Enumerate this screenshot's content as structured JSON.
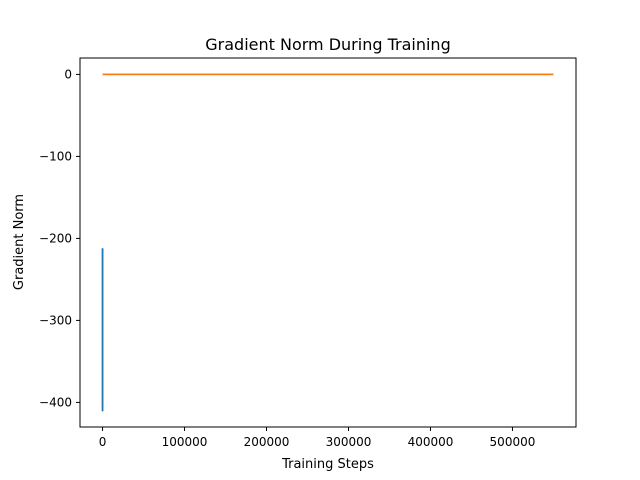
{
  "chart_data": {
    "type": "line",
    "title": "Gradient Norm During Training",
    "xlabel": "Training Steps",
    "ylabel": "Gradient Norm",
    "xlim": [
      -27500,
      577500
    ],
    "ylim": [
      -430,
      20
    ],
    "xticks": [
      0,
      100000,
      200000,
      300000,
      400000,
      500000
    ],
    "xtick_labels": [
      "0",
      "100000",
      "200000",
      "300000",
      "400000",
      "500000"
    ],
    "yticks": [
      0,
      -100,
      -200,
      -300,
      -400
    ],
    "ytick_labels": [
      "0",
      "−100",
      "−200",
      "−300",
      "−400"
    ],
    "grid": false,
    "legend": false,
    "series": [
      {
        "color": "#1f77b4",
        "x": [
          0,
          0,
          0,
          0,
          0,
          0,
          0,
          0,
          0
        ],
        "y": [
          -212,
          -314,
          -214,
          -312,
          -216,
          -410,
          -300,
          -240,
          -212
        ]
      },
      {
        "color": "#ff7f0e",
        "x": [
          0,
          550000
        ],
        "y": [
          0,
          0
        ]
      }
    ]
  }
}
